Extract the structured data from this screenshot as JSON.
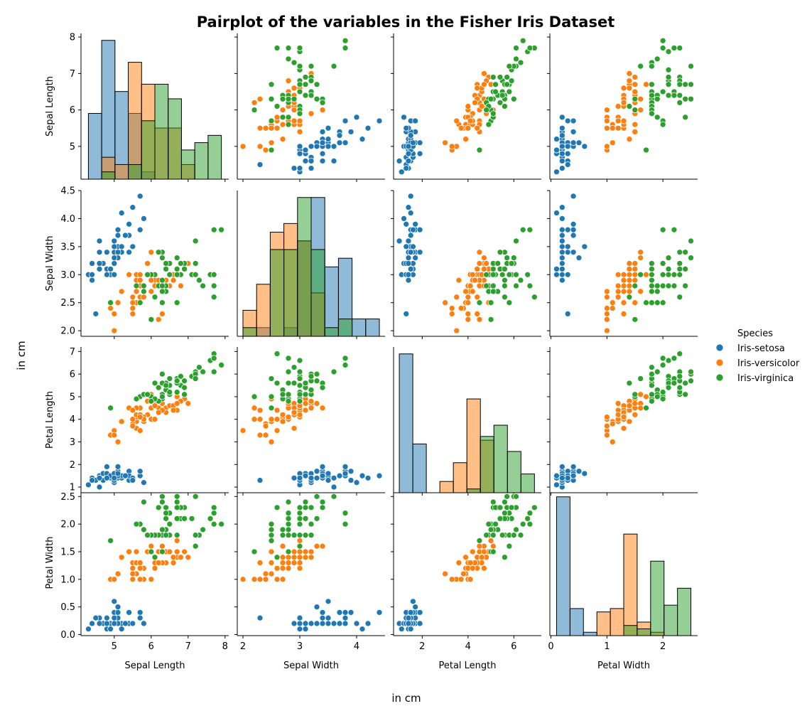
{
  "figure": {
    "title": "Pairplot of the variables in the Fisher Iris Dataset",
    "x_suplabel": "in cm",
    "y_suplabel": "in cm"
  },
  "legend": {
    "title": "Species",
    "placement": "right"
  },
  "colors": {
    "Iris-setosa": "#1f77b4",
    "Iris-versicolor": "#ff7f0e",
    "Iris-virginica": "#2ca02c"
  },
  "chart_data": {
    "type": "scatter",
    "kind": "pairplot",
    "diag_kind": "hist",
    "hue": "Species",
    "variables": [
      "Sepal Length",
      "Sepal Width",
      "Petal Length",
      "Petal Width"
    ],
    "species": [
      "Iris-setosa",
      "Iris-versicolor",
      "Iris-virginica"
    ],
    "axes": {
      "Sepal Length": {
        "range": [
          4.1,
          8.1
        ],
        "ticks": [
          5,
          6,
          7,
          8
        ],
        "y_ticks": [
          5,
          6,
          7,
          8
        ]
      },
      "Sepal Width": {
        "range": [
          1.9,
          4.5
        ],
        "ticks": [
          2,
          3,
          4
        ],
        "y_ticks": [
          "2.0",
          "2.5",
          "3.0",
          "3.5",
          "4.0",
          "4.5"
        ]
      },
      "Petal Length": {
        "range": [
          0.75,
          7.2
        ],
        "ticks": [
          2,
          4,
          6
        ],
        "y_ticks": [
          1,
          2,
          3,
          4,
          5,
          6,
          7
        ]
      },
      "Petal Width": {
        "range": [
          -0.02,
          2.62
        ],
        "ticks": [
          0,
          1,
          2
        ],
        "y_ticks": [
          "0.0",
          "0.5",
          "1.0",
          "1.5",
          "2.0",
          "2.5"
        ]
      }
    },
    "samples": {
      "Iris-setosa": [
        [
          5.1,
          3.5,
          1.4,
          0.2
        ],
        [
          4.9,
          3.0,
          1.4,
          0.2
        ],
        [
          4.7,
          3.2,
          1.3,
          0.2
        ],
        [
          4.6,
          3.1,
          1.5,
          0.2
        ],
        [
          5.0,
          3.6,
          1.4,
          0.2
        ],
        [
          5.4,
          3.9,
          1.7,
          0.4
        ],
        [
          4.6,
          3.4,
          1.4,
          0.3
        ],
        [
          5.0,
          3.4,
          1.5,
          0.2
        ],
        [
          4.4,
          2.9,
          1.4,
          0.2
        ],
        [
          4.9,
          3.1,
          1.5,
          0.1
        ],
        [
          5.4,
          3.7,
          1.5,
          0.2
        ],
        [
          4.8,
          3.4,
          1.6,
          0.2
        ],
        [
          4.8,
          3.0,
          1.4,
          0.1
        ],
        [
          4.3,
          3.0,
          1.1,
          0.1
        ],
        [
          5.8,
          4.0,
          1.2,
          0.2
        ],
        [
          5.7,
          4.4,
          1.5,
          0.4
        ],
        [
          5.4,
          3.9,
          1.3,
          0.4
        ],
        [
          5.1,
          3.5,
          1.4,
          0.3
        ],
        [
          5.7,
          3.8,
          1.7,
          0.3
        ],
        [
          5.1,
          3.8,
          1.5,
          0.3
        ],
        [
          5.4,
          3.4,
          1.7,
          0.2
        ],
        [
          5.1,
          3.7,
          1.5,
          0.4
        ],
        [
          4.6,
          3.6,
          1.0,
          0.2
        ],
        [
          5.1,
          3.3,
          1.7,
          0.5
        ],
        [
          4.8,
          3.4,
          1.9,
          0.2
        ],
        [
          5.0,
          3.0,
          1.6,
          0.2
        ],
        [
          5.0,
          3.4,
          1.6,
          0.4
        ],
        [
          5.2,
          3.5,
          1.5,
          0.2
        ],
        [
          5.2,
          3.4,
          1.4,
          0.2
        ],
        [
          4.7,
          3.2,
          1.6,
          0.2
        ],
        [
          4.8,
          3.1,
          1.6,
          0.2
        ],
        [
          5.4,
          3.4,
          1.5,
          0.4
        ],
        [
          5.2,
          4.1,
          1.5,
          0.1
        ],
        [
          5.5,
          4.2,
          1.4,
          0.2
        ],
        [
          4.9,
          3.1,
          1.5,
          0.1
        ],
        [
          5.0,
          3.2,
          1.2,
          0.2
        ],
        [
          5.5,
          3.5,
          1.3,
          0.2
        ],
        [
          4.9,
          3.1,
          1.5,
          0.1
        ],
        [
          4.4,
          3.0,
          1.3,
          0.2
        ],
        [
          5.1,
          3.4,
          1.5,
          0.2
        ],
        [
          5.0,
          3.5,
          1.3,
          0.3
        ],
        [
          4.5,
          2.3,
          1.3,
          0.3
        ],
        [
          4.4,
          3.2,
          1.3,
          0.2
        ],
        [
          5.0,
          3.5,
          1.6,
          0.6
        ],
        [
          5.1,
          3.8,
          1.9,
          0.4
        ],
        [
          4.8,
          3.0,
          1.4,
          0.3
        ],
        [
          5.1,
          3.8,
          1.6,
          0.2
        ],
        [
          4.6,
          3.2,
          1.4,
          0.2
        ],
        [
          5.3,
          3.7,
          1.5,
          0.2
        ],
        [
          5.0,
          3.3,
          1.4,
          0.2
        ]
      ],
      "Iris-versicolor": [
        [
          7.0,
          3.2,
          4.7,
          1.4
        ],
        [
          6.4,
          3.2,
          4.5,
          1.5
        ],
        [
          6.9,
          3.1,
          4.9,
          1.5
        ],
        [
          5.5,
          2.3,
          4.0,
          1.3
        ],
        [
          6.5,
          2.8,
          4.6,
          1.5
        ],
        [
          5.7,
          2.8,
          4.5,
          1.3
        ],
        [
          6.3,
          3.3,
          4.7,
          1.6
        ],
        [
          4.9,
          2.4,
          3.3,
          1.0
        ],
        [
          6.6,
          2.9,
          4.6,
          1.3
        ],
        [
          5.2,
          2.7,
          3.9,
          1.4
        ],
        [
          5.0,
          2.0,
          3.5,
          1.0
        ],
        [
          5.9,
          3.0,
          4.2,
          1.5
        ],
        [
          6.0,
          2.2,
          4.0,
          1.0
        ],
        [
          6.1,
          2.9,
          4.7,
          1.4
        ],
        [
          5.6,
          2.9,
          3.6,
          1.3
        ],
        [
          6.7,
          3.1,
          4.4,
          1.4
        ],
        [
          5.6,
          3.0,
          4.5,
          1.5
        ],
        [
          5.8,
          2.7,
          4.1,
          1.0
        ],
        [
          6.2,
          2.2,
          4.5,
          1.5
        ],
        [
          5.6,
          2.5,
          3.9,
          1.1
        ],
        [
          5.9,
          3.2,
          4.8,
          1.8
        ],
        [
          6.1,
          2.8,
          4.0,
          1.3
        ],
        [
          6.3,
          2.5,
          4.9,
          1.5
        ],
        [
          6.1,
          2.8,
          4.7,
          1.2
        ],
        [
          6.4,
          2.9,
          4.3,
          1.3
        ],
        [
          6.6,
          3.0,
          4.4,
          1.4
        ],
        [
          6.8,
          2.8,
          4.8,
          1.4
        ],
        [
          6.7,
          3.0,
          5.0,
          1.7
        ],
        [
          6.0,
          2.9,
          4.5,
          1.5
        ],
        [
          5.7,
          2.6,
          3.5,
          1.0
        ],
        [
          5.5,
          2.4,
          3.8,
          1.1
        ],
        [
          5.5,
          2.4,
          3.7,
          1.0
        ],
        [
          5.8,
          2.7,
          3.9,
          1.2
        ],
        [
          6.0,
          2.7,
          5.1,
          1.6
        ],
        [
          5.4,
          3.0,
          4.5,
          1.5
        ],
        [
          6.0,
          3.4,
          4.5,
          1.6
        ],
        [
          6.7,
          3.1,
          4.7,
          1.5
        ],
        [
          6.3,
          2.3,
          4.4,
          1.3
        ],
        [
          5.6,
          3.0,
          4.1,
          1.3
        ],
        [
          5.5,
          2.5,
          4.0,
          1.3
        ],
        [
          5.5,
          2.6,
          4.4,
          1.2
        ],
        [
          6.1,
          3.0,
          4.6,
          1.4
        ],
        [
          5.8,
          2.6,
          4.0,
          1.2
        ],
        [
          5.0,
          2.3,
          3.3,
          1.0
        ],
        [
          5.6,
          2.7,
          4.2,
          1.3
        ],
        [
          5.7,
          3.0,
          4.2,
          1.2
        ],
        [
          5.7,
          2.9,
          4.2,
          1.3
        ],
        [
          6.2,
          2.9,
          4.3,
          1.3
        ],
        [
          5.1,
          2.5,
          3.0,
          1.1
        ],
        [
          5.7,
          2.8,
          4.1,
          1.3
        ]
      ],
      "Iris-virginica": [
        [
          6.3,
          3.3,
          6.0,
          2.5
        ],
        [
          5.8,
          2.7,
          5.1,
          1.9
        ],
        [
          7.1,
          3.0,
          5.9,
          2.1
        ],
        [
          6.3,
          2.9,
          5.6,
          1.8
        ],
        [
          6.5,
          3.0,
          5.8,
          2.2
        ],
        [
          7.6,
          3.0,
          6.6,
          2.1
        ],
        [
          4.9,
          2.5,
          4.5,
          1.7
        ],
        [
          7.3,
          2.9,
          6.3,
          1.8
        ],
        [
          6.7,
          2.5,
          5.8,
          1.8
        ],
        [
          7.2,
          3.6,
          6.1,
          2.5
        ],
        [
          6.5,
          3.2,
          5.1,
          2.0
        ],
        [
          6.4,
          2.7,
          5.3,
          1.9
        ],
        [
          6.8,
          3.0,
          5.5,
          2.1
        ],
        [
          5.7,
          2.5,
          5.0,
          2.0
        ],
        [
          5.8,
          2.8,
          5.1,
          2.4
        ],
        [
          6.4,
          3.2,
          5.3,
          2.3
        ],
        [
          6.5,
          3.0,
          5.5,
          1.8
        ],
        [
          7.7,
          3.8,
          6.7,
          2.2
        ],
        [
          7.7,
          2.6,
          6.9,
          2.3
        ],
        [
          6.0,
          2.2,
          5.0,
          1.5
        ],
        [
          6.9,
          3.2,
          5.7,
          2.3
        ],
        [
          5.6,
          2.8,
          4.9,
          2.0
        ],
        [
          7.7,
          2.8,
          6.7,
          2.0
        ],
        [
          6.3,
          2.7,
          4.9,
          1.8
        ],
        [
          6.7,
          3.3,
          5.7,
          2.1
        ],
        [
          7.2,
          3.2,
          6.0,
          1.8
        ],
        [
          6.2,
          2.8,
          4.8,
          1.8
        ],
        [
          6.1,
          3.0,
          4.9,
          1.8
        ],
        [
          6.4,
          2.8,
          5.6,
          2.1
        ],
        [
          7.2,
          3.0,
          5.8,
          1.6
        ],
        [
          7.4,
          2.8,
          6.1,
          1.9
        ],
        [
          7.9,
          3.8,
          6.4,
          2.0
        ],
        [
          6.4,
          2.8,
          5.6,
          2.2
        ],
        [
          6.3,
          2.8,
          5.1,
          1.5
        ],
        [
          6.1,
          2.6,
          5.6,
          1.4
        ],
        [
          7.7,
          3.0,
          6.1,
          2.3
        ],
        [
          6.3,
          3.4,
          5.6,
          2.4
        ],
        [
          6.4,
          3.1,
          5.5,
          1.8
        ],
        [
          6.0,
          3.0,
          4.8,
          1.8
        ],
        [
          6.9,
          3.1,
          5.4,
          2.1
        ],
        [
          6.7,
          3.1,
          5.6,
          2.4
        ],
        [
          6.9,
          3.1,
          5.1,
          2.3
        ],
        [
          5.8,
          2.7,
          5.1,
          1.9
        ],
        [
          6.8,
          3.2,
          5.9,
          2.3
        ],
        [
          6.7,
          3.3,
          5.7,
          2.5
        ],
        [
          6.7,
          3.0,
          5.2,
          2.3
        ],
        [
          6.3,
          2.5,
          5.0,
          1.9
        ],
        [
          6.5,
          3.0,
          5.2,
          2.0
        ],
        [
          6.2,
          3.4,
          5.4,
          2.3
        ],
        [
          5.9,
          3.0,
          5.1,
          1.8
        ]
      ]
    }
  }
}
